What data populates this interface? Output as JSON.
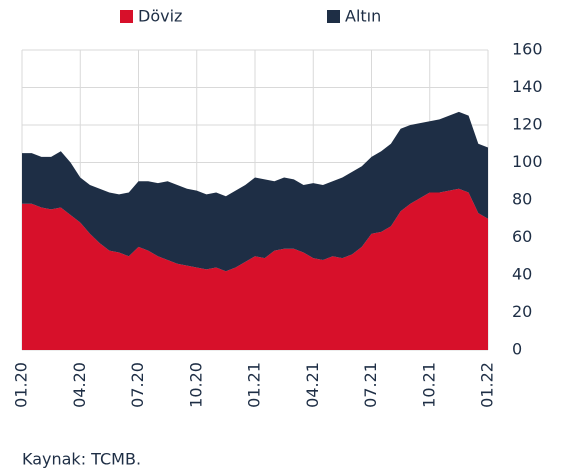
{
  "chart_data": {
    "type": "stacked_area",
    "categories": [
      "01.20",
      null,
      null,
      null,
      null,
      null,
      "04.20",
      null,
      null,
      null,
      null,
      null,
      "07.20",
      null,
      null,
      null,
      null,
      null,
      "10.20",
      null,
      null,
      null,
      null,
      null,
      "01.21",
      null,
      null,
      null,
      null,
      null,
      "04.21",
      null,
      null,
      null,
      null,
      null,
      "07.21",
      null,
      null,
      null,
      null,
      null,
      "10.21",
      null,
      null,
      null,
      null,
      null,
      "01.22"
    ],
    "series": [
      {
        "name": "Döviz",
        "color": "#d7102a",
        "values": [
          78,
          78,
          76,
          75,
          76,
          72,
          68,
          62,
          57,
          53,
          52,
          50,
          55,
          53,
          50,
          48,
          46,
          45,
          44,
          43,
          44,
          42,
          44,
          47,
          50,
          49,
          53,
          54,
          54,
          52,
          49,
          48,
          50,
          49,
          51,
          55,
          62,
          63,
          66,
          74,
          78,
          81,
          84,
          84,
          85,
          86,
          84,
          73,
          70
        ]
      },
      {
        "name": "Altın",
        "color": "#1e2e45",
        "values": [
          27,
          27,
          27,
          28,
          30,
          28,
          24,
          26,
          29,
          31,
          31,
          34,
          35,
          37,
          39,
          42,
          42,
          41,
          41,
          40,
          40,
          40,
          41,
          41,
          42,
          42,
          37,
          38,
          37,
          36,
          40,
          40,
          40,
          43,
          44,
          43,
          41,
          43,
          44,
          44,
          42,
          40,
          38,
          39,
          40,
          41,
          41,
          37,
          38
        ]
      }
    ],
    "ylim": [
      0,
      160
    ],
    "yticks": [
      0,
      20,
      40,
      60,
      80,
      100,
      120,
      140,
      160
    ],
    "grid": true,
    "source": "Kaynak: TCMB."
  }
}
